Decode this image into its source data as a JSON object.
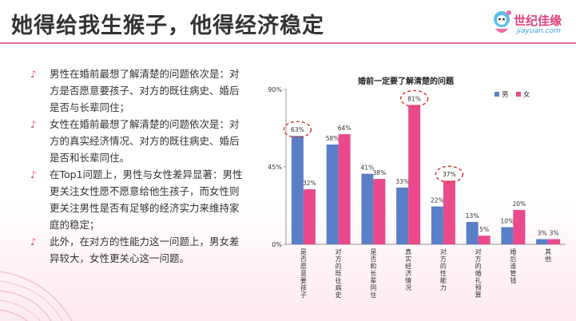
{
  "slide": {
    "title": "她得给我生猴子，他得经济稳定"
  },
  "logo": {
    "name": "世纪佳缘",
    "sub": "jiayuan.com",
    "icon": "mascot-icon"
  },
  "bullets": [
    {
      "icon": "music-note-icon",
      "text": "男性在婚前最想了解清楚的问题依次是：对方是否愿意要孩子、对方的既往病史、婚后是否与长辈同住；"
    },
    {
      "icon": "music-note-icon",
      "text": "女性在婚前最想了解清楚的问题依次是：对方的真实经济情况、对方的既往病史、婚后是否和长辈同住。"
    },
    {
      "icon": "music-note-icon",
      "text": "在Top1问题上，男性与女性差异显著：男性更关注女性愿不愿意给他生孩子，而女性则更关注男性是否有足够的经济实力来维持家庭的稳定；"
    },
    {
      "icon": "music-note-icon",
      "text": "此外，在对方的性能力这一问题上，男女差异较大，女性更关心这一问题。"
    }
  ],
  "chart_data": {
    "type": "bar",
    "title": "婚前一定要了解清楚的问题",
    "categories": [
      "是否愿意要孩子",
      "对方的既往病史",
      "是否和长辈同住",
      "真实经济情况",
      "对方的性能力",
      "对方的婚礼预算",
      "婚后谁管钱",
      "其他"
    ],
    "series": [
      {
        "name": "男",
        "color": "#5b7fc7",
        "values": [
          63,
          58,
          41,
          33,
          22,
          13,
          10,
          3
        ]
      },
      {
        "name": "女",
        "color": "#ea4a8c",
        "values": [
          32,
          64,
          38,
          81,
          37,
          5,
          20,
          3
        ]
      }
    ],
    "value_labels": {
      "男": [
        "63%",
        "58%",
        "41%",
        "33%",
        "22%",
        "13%",
        "10%",
        "3%"
      ],
      "女": [
        "32%",
        "64%",
        "38%",
        "81%",
        "37%",
        "5%",
        "20%",
        "3%"
      ]
    },
    "ylim": [
      0,
      90
    ],
    "yticks": [
      "0%",
      "45%",
      "90%"
    ],
    "legend": "top-right",
    "grid": false,
    "highlighted": [
      {
        "series": "男",
        "category": "是否愿意要孩子"
      },
      {
        "series": "女",
        "category": "真实经济情况"
      },
      {
        "series": "女",
        "category": "对方的性能力"
      }
    ]
  }
}
